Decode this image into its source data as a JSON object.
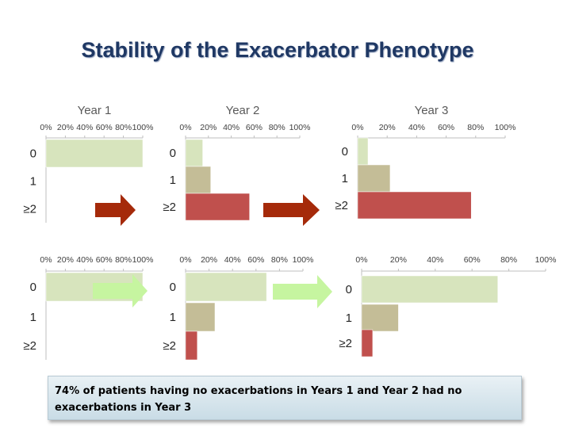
{
  "title": "Stability of the Exacerbator Phenotype",
  "callout": "74% of patients having no exacerbations in Years 1 and Year 2 had no exacerbations in Year 3",
  "colors": {
    "cat_0": "#d7e4bd",
    "cat_1": "#c4bd97",
    "cat_2": "#c0504d",
    "arrow_red": "#a52a0a",
    "arrow_green": "#c6f5a0",
    "title": "#1f3864",
    "axis": "#bfbfbf"
  },
  "chart_data": [
    {
      "id": "top-year1",
      "type": "bar",
      "title": "Year 1",
      "tick_labels": [
        "0%",
        "20%",
        "40%",
        "60%",
        "80%",
        "100%"
      ],
      "xlim": [
        0,
        100
      ],
      "categories": [
        "0",
        "1",
        "≥2"
      ],
      "values": [
        100,
        0,
        0
      ]
    },
    {
      "id": "top-year2",
      "type": "bar",
      "title": "Year 2",
      "tick_labels": [
        "0%",
        "20%",
        "40%",
        "60%",
        "80%",
        "100%"
      ],
      "xlim": [
        0,
        100
      ],
      "categories": [
        "0",
        "1",
        "≥2"
      ],
      "values": [
        15,
        22,
        56
      ]
    },
    {
      "id": "top-year3",
      "type": "bar",
      "title": "Year 3",
      "tick_labels": [
        "0%",
        "20%",
        "40%",
        "60%",
        "80%",
        "100%"
      ],
      "xlim": [
        0,
        100
      ],
      "categories": [
        "0",
        "1",
        "≥2"
      ],
      "values": [
        7,
        22,
        77
      ]
    },
    {
      "id": "bottom-year1",
      "type": "bar",
      "title": "",
      "tick_labels": [
        "0%",
        "20%",
        "40%",
        "60%",
        "80%",
        "100%"
      ],
      "xlim": [
        0,
        100
      ],
      "categories": [
        "0",
        "1",
        "≥2"
      ],
      "values": [
        100,
        0,
        0
      ]
    },
    {
      "id": "bottom-year2",
      "type": "bar",
      "title": "",
      "tick_labels": [
        "0%",
        "20%",
        "40%",
        "60%",
        "80%",
        "100%"
      ],
      "xlim": [
        0,
        100
      ],
      "categories": [
        "0",
        "1",
        "≥2"
      ],
      "values": [
        69,
        25,
        10
      ]
    },
    {
      "id": "bottom-year3",
      "type": "bar",
      "title": "",
      "tick_labels": [
        "0%",
        "20%",
        "40%",
        "60%",
        "80%",
        "100%"
      ],
      "xlim": [
        0,
        100
      ],
      "categories": [
        "0",
        "1",
        "≥2"
      ],
      "values": [
        74,
        20,
        6
      ]
    }
  ]
}
